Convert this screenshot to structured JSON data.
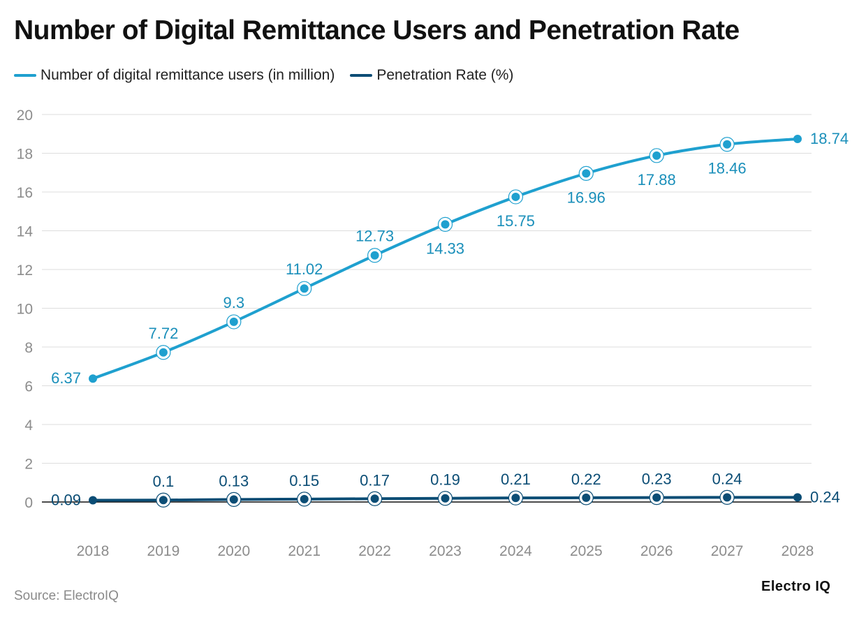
{
  "colors": {
    "users": "#1fa0cf",
    "rate": "#0b4d75",
    "grid": "#dddddd",
    "tick": "#8c8c8c"
  },
  "chart_data": {
    "type": "line",
    "title": "Number of Digital Remittance Users and Penetration Rate",
    "categories": [
      "2018",
      "2019",
      "2020",
      "2021",
      "2022",
      "2023",
      "2024",
      "2025",
      "2026",
      "2027",
      "2028"
    ],
    "series": [
      {
        "name": "Number of digital remittance users (in million)",
        "values": [
          6.37,
          7.72,
          9.3,
          11.02,
          12.73,
          14.33,
          15.75,
          16.96,
          17.88,
          18.46,
          18.74
        ],
        "labels": [
          "6.37",
          "7.72",
          "9.3",
          "11.02",
          "12.73",
          "14.33",
          "15.75",
          "16.96",
          "17.88",
          "18.46",
          "18.74"
        ]
      },
      {
        "name": "Penetration Rate (%)",
        "values": [
          0.09,
          0.1,
          0.13,
          0.15,
          0.17,
          0.19,
          0.21,
          0.22,
          0.23,
          0.24,
          0.24
        ],
        "labels": [
          "0.09",
          "0.1",
          "0.13",
          "0.15",
          "0.17",
          "0.19",
          "0.21",
          "0.22",
          "0.23",
          "0.24",
          "0.24"
        ]
      }
    ],
    "yticks": [
      "0",
      "2",
      "4",
      "6",
      "8",
      "10",
      "12",
      "14",
      "16",
      "18",
      "20"
    ],
    "ylim": [
      0,
      20
    ],
    "xlabel": "",
    "ylabel": "",
    "legend": "top-left",
    "grid": true
  },
  "footer": {
    "source": "Source: ElectroIQ",
    "brand": "Electro IQ"
  }
}
